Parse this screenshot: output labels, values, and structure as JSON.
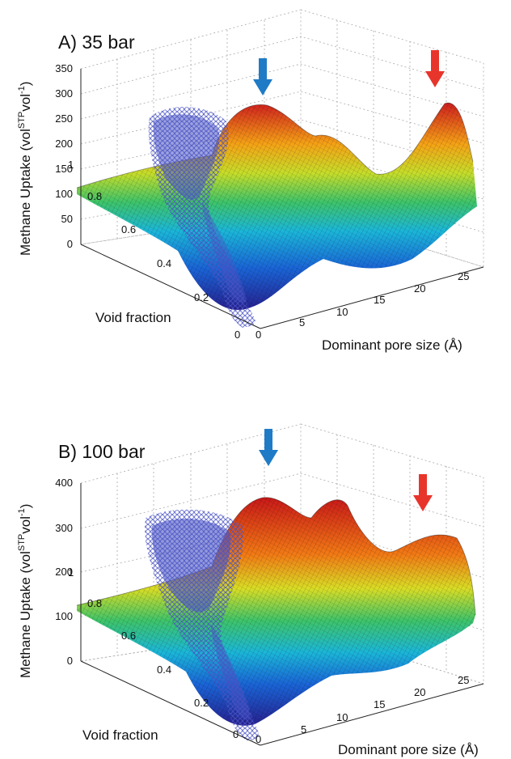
{
  "chart_data": [
    {
      "type": "surface3d",
      "title": "A)  35 bar",
      "zlabel": "Methane Uptake (vol",
      "zlabel_sup1": "STP",
      "zlabel_mid": "vol",
      "zlabel_sup2": "-1",
      "zlabel_end": ")",
      "xlabel": "Dominant pore size (Å)",
      "ylabel": "Void fraction",
      "zlim": [
        0,
        350
      ],
      "z_ticks": [
        "0",
        "50",
        "100",
        "150",
        "200",
        "250",
        "300",
        "350"
      ],
      "x_ticks": [
        "0",
        "5",
        "10",
        "15",
        "20",
        "25"
      ],
      "y_ticks": [
        "0",
        "0.2",
        "0.4",
        "0.6",
        "0.8",
        "1"
      ],
      "peaks": [
        {
          "marker": "blue-arrow",
          "pore_size": 6,
          "void_fraction": 0.75,
          "uptake": 265
        },
        {
          "marker": "red-arrow",
          "pore_size": 20,
          "void_fraction": 0.85,
          "uptake": 285
        }
      ],
      "scatter": "simulated structures",
      "colors": {
        "arrow_blue": "#1f7bc6",
        "arrow_red": "#e8352b",
        "scatter": "#4a53c4"
      }
    },
    {
      "type": "surface3d",
      "title": "B)  100 bar",
      "zlabel": "Methane Uptake (vol",
      "zlabel_sup1": "STP",
      "zlabel_mid": "vol",
      "zlabel_sup2": "-1",
      "zlabel_end": ")",
      "xlabel": "Dominant pore size (Å)",
      "ylabel": "Void fraction",
      "zlim": [
        0,
        400
      ],
      "z_ticks": [
        "0",
        "100",
        "200",
        "300",
        "400"
      ],
      "x_ticks": [
        "0",
        "5",
        "10",
        "15",
        "20",
        "25"
      ],
      "y_ticks": [
        "0",
        "0.2",
        "0.4",
        "0.6",
        "0.8",
        "1"
      ],
      "peaks": [
        {
          "marker": "blue-arrow",
          "pore_size": 7,
          "void_fraction": 0.8,
          "uptake": 355
        },
        {
          "marker": "red-arrow",
          "pore_size": 19,
          "void_fraction": 0.85,
          "uptake": 280
        }
      ],
      "scatter": "simulated structures",
      "colors": {
        "arrow_blue": "#1f7bc6",
        "arrow_red": "#e8352b",
        "scatter": "#4a53c4"
      }
    }
  ]
}
